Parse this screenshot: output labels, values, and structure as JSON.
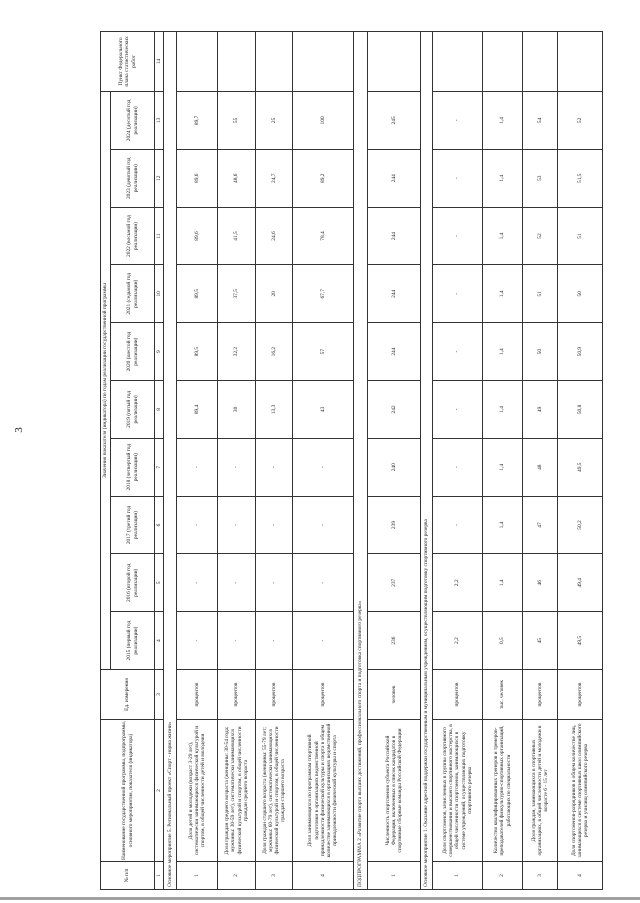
{
  "page_number": "3",
  "header": {
    "num": "№ п/п",
    "name": "Наименование государственной программы, подпрограммы, основного мероприятия, показателя (индикатора)",
    "unit": "Ед. измерения",
    "group": "Значения показателя (индикатора) по годам реализации государственной программы",
    "years": [
      "2015 (первый год реализации)",
      "2016 (второй год реализации)",
      "2017 (третий год реализации)",
      "2018 (четвертый год реализации)",
      "2019 (пятый год реализации)",
      "2020 (шестой год реализации)",
      "2021 (седьмой год реализации)",
      "2022 (восьмой год реализации)",
      "2023 (девятый год реализации)",
      "2024 (десятый год реализации)"
    ],
    "plan": "Пункт Федерального плана статистических работ",
    "col_numbers": [
      "1",
      "2",
      "3",
      "4",
      "5",
      "6",
      "7",
      "8",
      "9",
      "10",
      "11",
      "12",
      "13",
      "14"
    ]
  },
  "sections": [
    {
      "title": "Основное мероприятие 5. Региональный проект «Спорт - норма жизни»",
      "rows": [
        {
          "num": "1",
          "name": "Доля детей и молодежи (возраст 3-29 лет), систематически занимающихся физической культурой и спортом, в общей численности детей и молодежи",
          "unit": "процентов",
          "values": [
            "-",
            "-",
            "-",
            "-",
            "89,4",
            "89,5",
            "89,5",
            "89,6",
            "89,6",
            "89,7"
          ],
          "plan": ""
        },
        {
          "num": "2",
          "name": "Доля граждан среднего возраста (женщины: 30-54 года; мужчины: 30-59 лет), систематически занимающихся физической культурой и спортом, в общей численности граждан среднего возраста",
          "unit": "процентов",
          "values": [
            "-",
            "-",
            "-",
            "-",
            "30",
            "32,2",
            "37,5",
            "41,5",
            "48,6",
            "55"
          ],
          "plan": ""
        },
        {
          "num": "3",
          "name": "Доля граждан старшего возраста (женщины: 55-79 лет; мужчины: 60-79 лет), систематически занимающихся физической культурой и спортом, в общей численности граждан старшего возраста",
          "unit": "процентов",
          "values": [
            "-",
            "-",
            "-",
            "-",
            "13,3",
            "16,2",
            "20",
            "24,6",
            "24,7",
            "25"
          ],
          "plan": ""
        },
        {
          "num": "4",
          "name": "Доля занимающихся по программам спортивной подготовки в организациях ведомственной принадлежности физической культуры и спорта в общем количестве занимающихся в организациях ведомственной принадлежности физической культуры и спорта",
          "unit": "процентов",
          "values": [
            "-",
            "-",
            "-",
            "-",
            "43",
            "57",
            "67,7",
            "78,4",
            "89,2",
            "100"
          ],
          "plan": ""
        }
      ]
    },
    {
      "title": "ПОДПРОГРАММА 2 «Развитие спорта высших достижений, профессионального спорта и подготовка спортивного резерва»",
      "rows": [
        {
          "num": "1",
          "name": "Численность спортсменов субъекта Российской Федерации, включенных в список кандидатов в спортивные сборные команды Российской Федерации",
          "unit": "человек",
          "values": [
            "236",
            "237",
            "239",
            "240",
            "242",
            "244",
            "244",
            "244",
            "244",
            "245"
          ],
          "plan": ""
        }
      ]
    },
    {
      "title": "Основное мероприятие 1. Оказание адресной поддержки государственным и муниципальным учреждениям, осуществляющим подготовку спортивного резерва",
      "rows": [
        {
          "num": "1",
          "name": "Доля спортсменов, зачисленных в группы спортивного совершенствования и высшего спортивного мастерства, в общей численности спортсменов, занимающихся в системе учреждений, осуществляющих подготовку спортивного резерва",
          "unit": "процентов",
          "values": [
            "2,2",
            "2,2",
            "-",
            "-",
            "-",
            "-",
            "-",
            "-",
            "-",
            "-"
          ],
          "plan": ""
        },
        {
          "num": "2",
          "name": "Количество квалифицированных тренеров и тренеров-преподавателей физкультурно-спортивных организаций, работающих по специальности",
          "unit": "тыс. человек",
          "values": [
            "0,5",
            "1,4",
            "1,4",
            "1,4",
            "1,4",
            "1,4",
            "1,4",
            "1,4",
            "1,4",
            "1,4"
          ],
          "plan": ""
        },
        {
          "num": "3",
          "name": "Доля граждан, занимающихся в спортивных организациях, в общей численности детей и молодежи в возрасте 6 - 15 лет",
          "unit": "процентов",
          "values": [
            "45",
            "46",
            "47",
            "48",
            "49",
            "50",
            "51",
            "52",
            "53",
            "54"
          ],
          "plan": ""
        },
        {
          "num": "4",
          "name": "Доля спортсменов-разрядников в общем количестве лиц, занимающихся в системе спортивных школ олимпийского резерва и училищ олимпийского резерва",
          "unit": "процентов",
          "values": [
            "49,5",
            "49,4",
            "50,2",
            "49,5",
            "50,8",
            "50,9",
            "50",
            "51",
            "51,5",
            "52"
          ],
          "plan": ""
        }
      ]
    }
  ]
}
